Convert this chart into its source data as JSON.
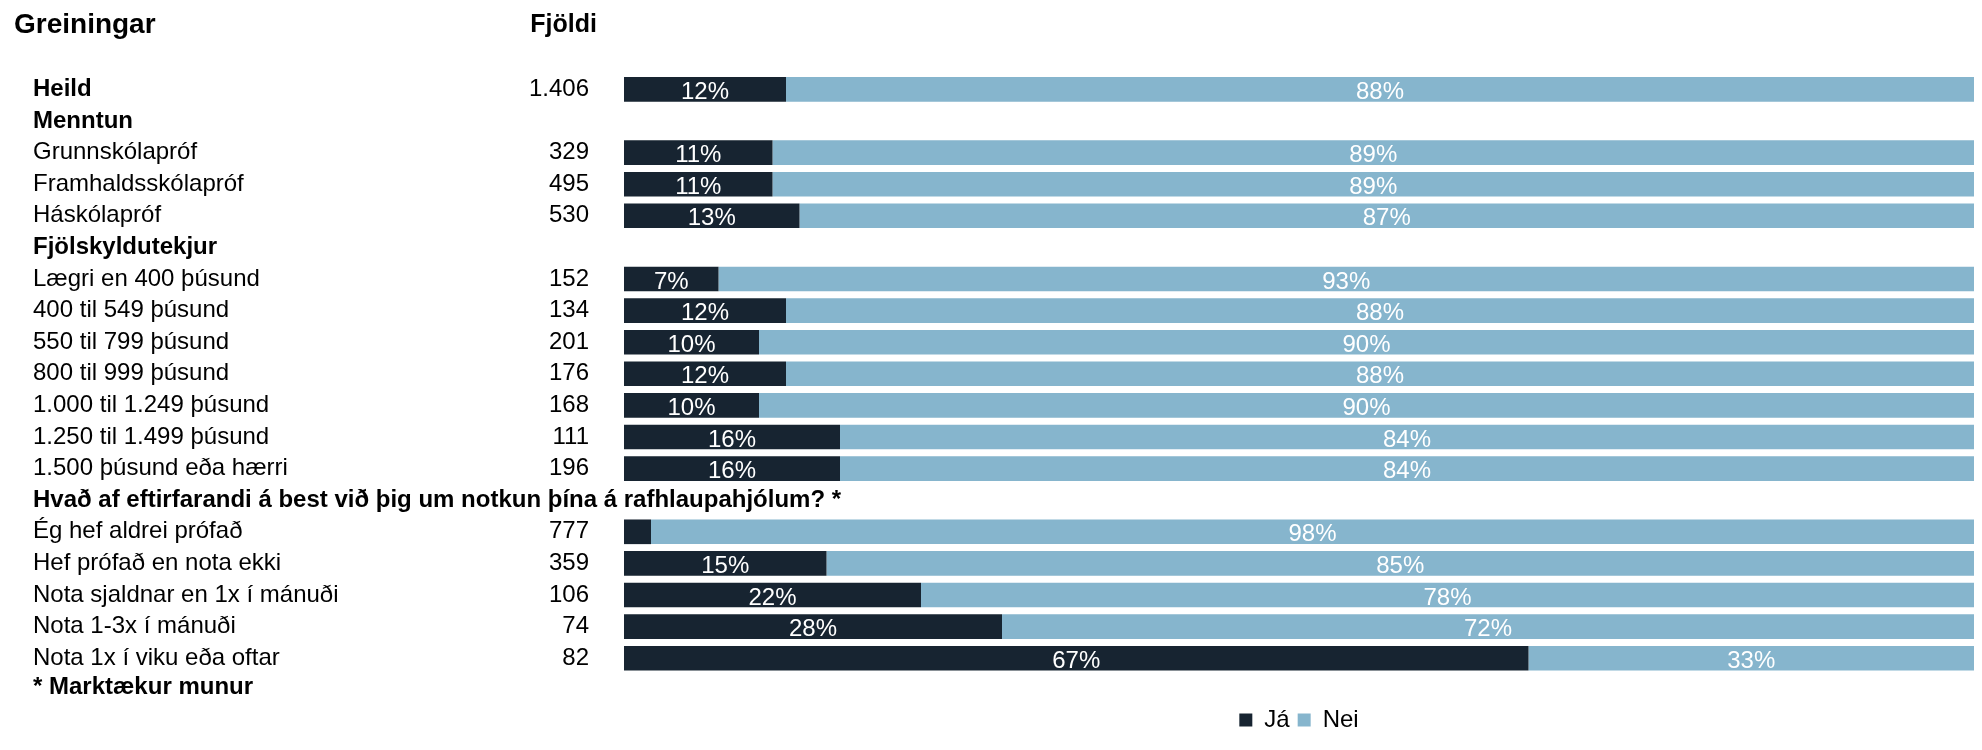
{
  "chart_data": {
    "type": "bar",
    "orientation": "horizontal",
    "stacked": true,
    "title": "Greiningar",
    "y2label": "Fjöldi",
    "categories": [
      "Heild",
      "Menntun",
      "Grunnskólapróf",
      "Framhaldsskólapróf",
      "Háskólapróf",
      "Fjölskyldutekjur",
      "Lægri en 400 þúsund",
      "400 til 549 þúsund",
      "550 til 799 þúsund",
      "800 til 999 þúsund",
      "1.000 til 1.249 þúsund",
      "1.250 til 1.499 þúsund",
      "1.500 þúsund eða hærri",
      "Hvað af eftirfarandi á best við þig um notkun þína á rafhlaupahjólum? *",
      "Ég hef aldrei prófað",
      "Hef prófað en nota ekki",
      "Nota sjaldnar en 1x í mánuði",
      "Nota 1-3x í mánuði",
      "Nota 1x í viku eða oftar"
    ],
    "y2_categories": [
      "1.406",
      null,
      "329",
      "495",
      "530",
      null,
      "152",
      "134",
      "201",
      "176",
      "168",
      "111",
      "196",
      null,
      "777",
      "359",
      "106",
      "74",
      "82"
    ],
    "series": [
      {
        "name": "Já",
        "color": "#172431",
        "values": [
          12,
          null,
          11,
          11,
          13,
          null,
          7,
          12,
          10,
          12,
          10,
          16,
          16,
          null,
          2,
          15,
          22,
          28,
          67
        ],
        "value_labels": [
          "12%",
          null,
          "11%",
          "11%",
          "13%",
          null,
          "7%",
          "12%",
          "10%",
          "12%",
          "10%",
          "16%",
          "16%",
          null,
          null,
          "15%",
          "22%",
          "28%",
          "67%"
        ]
      },
      {
        "name": "Nei",
        "color": "#86b5cd",
        "values": [
          88,
          null,
          89,
          89,
          87,
          null,
          93,
          88,
          90,
          88,
          90,
          84,
          84,
          null,
          98,
          85,
          78,
          72,
          33
        ],
        "value_labels": [
          "88%",
          null,
          "89%",
          "89%",
          "87%",
          null,
          "93%",
          "88%",
          "90%",
          "88%",
          "90%",
          "84%",
          "84%",
          null,
          "98%",
          "85%",
          "78%",
          "72%",
          "33%"
        ]
      }
    ],
    "xlim": [
      0,
      100
    ],
    "tick_labels": "y",
    "legend": "bottom",
    "annotations": [
      "* Marktækur munur"
    ]
  }
}
